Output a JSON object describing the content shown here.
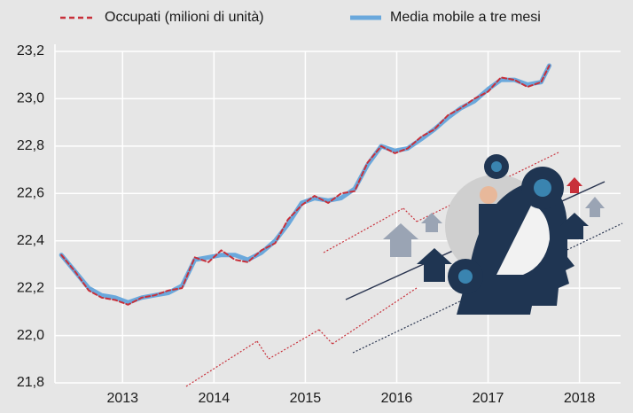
{
  "chart_data": {
    "type": "line",
    "x": [
      2012.83,
      2012.98,
      2013.13,
      2013.27,
      2013.42,
      2013.56,
      2013.71,
      2013.85,
      2014.0,
      2014.15,
      2014.29,
      2014.44,
      2014.58,
      2014.73,
      2014.87,
      2015.02,
      2015.17,
      2015.31,
      2015.46,
      2015.6,
      2015.75,
      2015.89,
      2016.04,
      2016.18,
      2016.33,
      2016.48,
      2016.62,
      2016.77,
      2016.91,
      2017.06,
      2017.2,
      2017.35,
      2017.5,
      2017.64,
      2017.79,
      2017.93,
      2018.08,
      2018.17
    ],
    "series": [
      {
        "name": "Occupati (milioni di unità)",
        "color": "#c8303a",
        "dash": true,
        "values": [
          22.34,
          22.27,
          22.19,
          22.16,
          22.15,
          22.13,
          22.16,
          22.17,
          22.19,
          22.2,
          22.33,
          22.31,
          22.36,
          22.32,
          22.31,
          22.36,
          22.39,
          22.49,
          22.55,
          22.59,
          22.56,
          22.6,
          22.61,
          22.73,
          22.8,
          22.77,
          22.79,
          22.84,
          22.87,
          22.93,
          22.96,
          23.0,
          23.03,
          23.09,
          23.08,
          23.05,
          23.07,
          23.14
        ]
      },
      {
        "name": "Media mobile a tre mesi",
        "color": "#6aa8dc",
        "dash": false,
        "values": [
          22.34,
          22.27,
          22.2,
          22.17,
          22.16,
          22.14,
          22.16,
          22.17,
          22.18,
          22.21,
          22.32,
          22.33,
          22.34,
          22.34,
          22.32,
          22.35,
          22.4,
          22.47,
          22.56,
          22.58,
          22.57,
          22.58,
          22.62,
          22.72,
          22.8,
          22.78,
          22.79,
          22.83,
          22.87,
          22.92,
          22.96,
          22.99,
          23.04,
          23.08,
          23.08,
          23.06,
          23.07,
          23.14
        ]
      }
    ],
    "xlim": [
      2012.76,
      2018.95
    ],
    "xticks": [
      {
        "value": 2013.5,
        "label": "2013"
      },
      {
        "value": 2014.5,
        "label": "2014"
      },
      {
        "value": 2015.5,
        "label": "2015"
      },
      {
        "value": 2016.5,
        "label": "2016"
      },
      {
        "value": 2017.5,
        "label": "2017"
      },
      {
        "value": 2018.5,
        "label": "2018"
      }
    ],
    "ylim": [
      21.8,
      23.2
    ],
    "yticks": [
      {
        "value": 21.8,
        "label": "21,8"
      },
      {
        "value": 22.0,
        "label": "22,0"
      },
      {
        "value": 22.2,
        "label": "22,2"
      },
      {
        "value": 22.4,
        "label": "22,4"
      },
      {
        "value": 22.6,
        "label": "22,6"
      },
      {
        "value": 22.8,
        "label": "22,8"
      },
      {
        "value": 23.0,
        "label": "23,0"
      },
      {
        "value": 23.2,
        "label": "23,2"
      }
    ],
    "grid": true
  }
}
